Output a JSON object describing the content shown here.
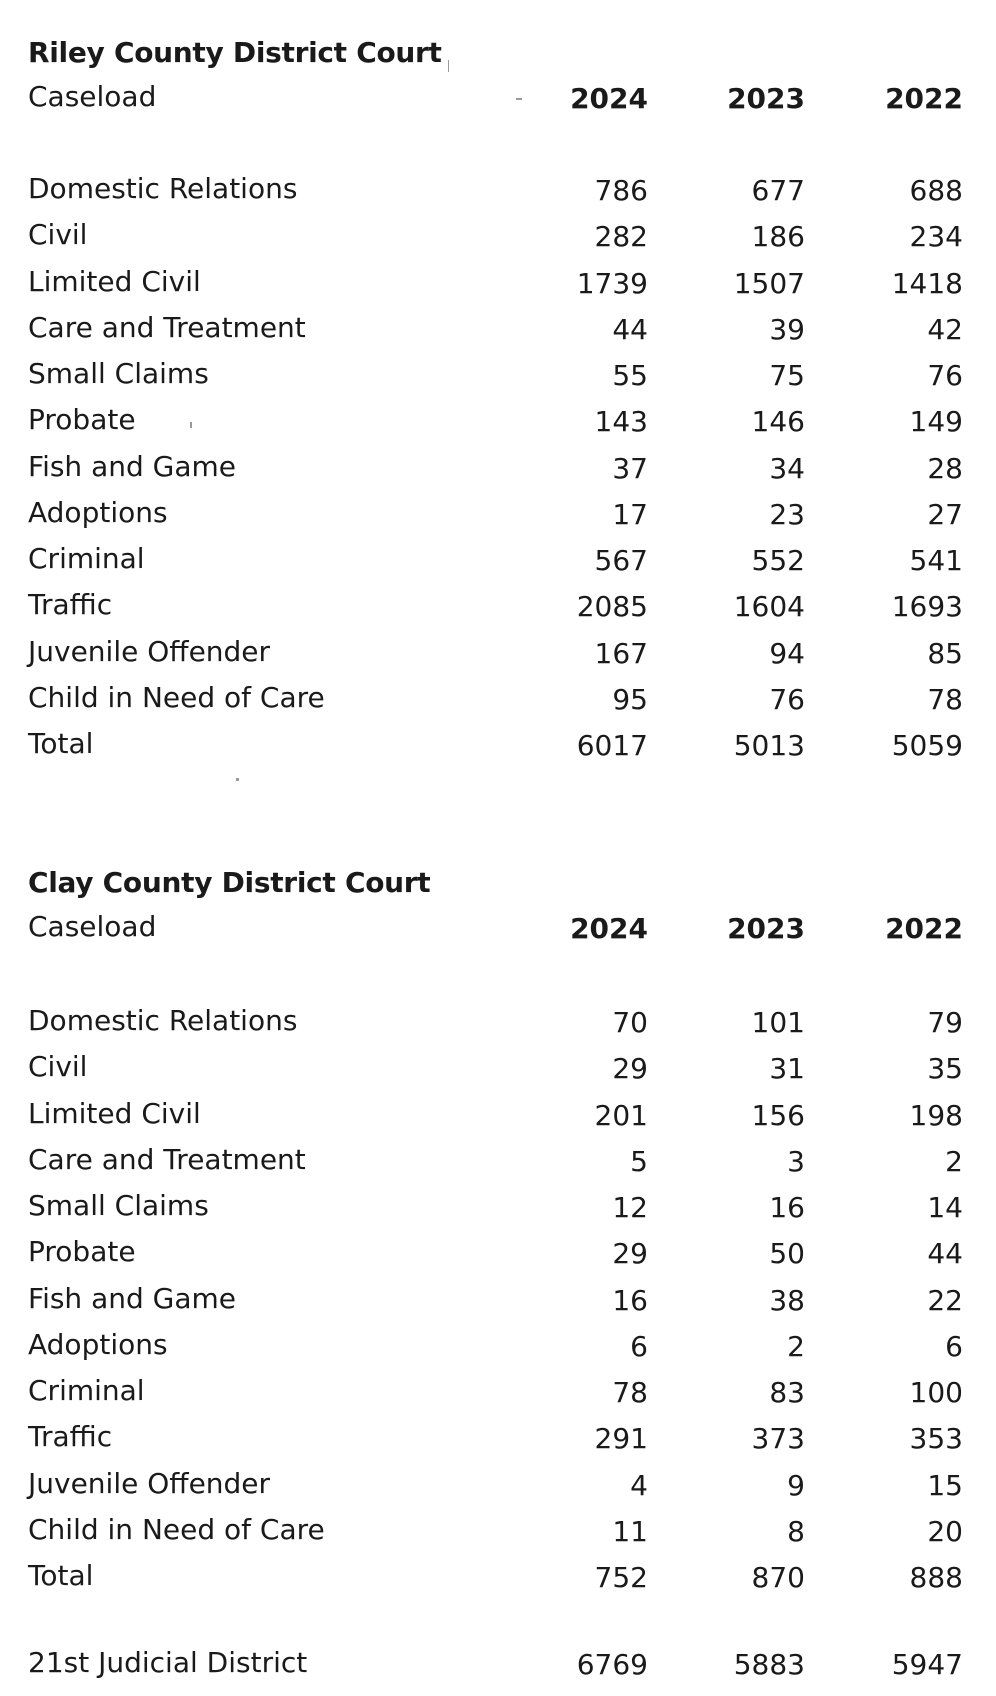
{
  "riley": {
    "title": "Riley County District Court",
    "caseload_label": "Caseload",
    "years": [
      "2024",
      "2023",
      "2022"
    ],
    "rows": [
      {
        "label": "Domestic Relations",
        "v2024": "786",
        "v2023": "677",
        "v2022": "688"
      },
      {
        "label": "Civil",
        "v2024": "282",
        "v2023": "186",
        "v2022": "234"
      },
      {
        "label": "Limited Civil",
        "v2024": "1739",
        "v2023": "1507",
        "v2022": "1418"
      },
      {
        "label": "Care and Treatment",
        "v2024": "44",
        "v2023": "39",
        "v2022": "42"
      },
      {
        "label": "Small Claims",
        "v2024": "55",
        "v2023": "75",
        "v2022": "76"
      },
      {
        "label": "Probate",
        "v2024": "143",
        "v2023": "146",
        "v2022": "149"
      },
      {
        "label": "Fish and Game",
        "v2024": "37",
        "v2023": "34",
        "v2022": "28"
      },
      {
        "label": "Adoptions",
        "v2024": "17",
        "v2023": "23",
        "v2022": "27"
      },
      {
        "label": "Criminal",
        "v2024": "567",
        "v2023": "552",
        "v2022": "541"
      },
      {
        "label": "Traffic",
        "v2024": "2085",
        "v2023": "1604",
        "v2022": "1693"
      },
      {
        "label": "Juvenile Offender",
        "v2024": "167",
        "v2023": "94",
        "v2022": "85"
      },
      {
        "label": "Child in Need of Care",
        "v2024": "95",
        "v2023": "76",
        "v2022": "78"
      },
      {
        "label": "Total",
        "v2024": "6017",
        "v2023": "5013",
        "v2022": "5059"
      }
    ]
  },
  "clay": {
    "title": "Clay County District Court",
    "caseload_label": "Caseload",
    "years": [
      "2024",
      "2023",
      "2022"
    ],
    "rows": [
      {
        "label": "Domestic Relations",
        "v2024": "70",
        "v2023": "101",
        "v2022": "79"
      },
      {
        "label": "Civil",
        "v2024": "29",
        "v2023": "31",
        "v2022": "35"
      },
      {
        "label": "Limited Civil",
        "v2024": "201",
        "v2023": "156",
        "v2022": "198"
      },
      {
        "label": "Care and Treatment",
        "v2024": "5",
        "v2023": "3",
        "v2022": "2"
      },
      {
        "label": "Small Claims",
        "v2024": "12",
        "v2023": "16",
        "v2022": "14"
      },
      {
        "label": "Probate",
        "v2024": "29",
        "v2023": "50",
        "v2022": "44"
      },
      {
        "label": "Fish and Game",
        "v2024": "16",
        "v2023": "38",
        "v2022": "22"
      },
      {
        "label": "Adoptions",
        "v2024": "6",
        "v2023": "2",
        "v2022": "6"
      },
      {
        "label": "Criminal",
        "v2024": "78",
        "v2023": "83",
        "v2022": "100"
      },
      {
        "label": "Traffic",
        "v2024": "291",
        "v2023": "373",
        "v2022": "353"
      },
      {
        "label": "Juvenile Offender",
        "v2024": "4",
        "v2023": "9",
        "v2022": "15"
      },
      {
        "label": "Child in Need of Care",
        "v2024": "11",
        "v2023": "8",
        "v2022": "20"
      },
      {
        "label": "Total",
        "v2024": "752",
        "v2023": "870",
        "v2022": "888"
      }
    ]
  },
  "district": {
    "label": "21st Judicial District",
    "v2024": "6769",
    "v2023": "5883",
    "v2022": "5947"
  }
}
